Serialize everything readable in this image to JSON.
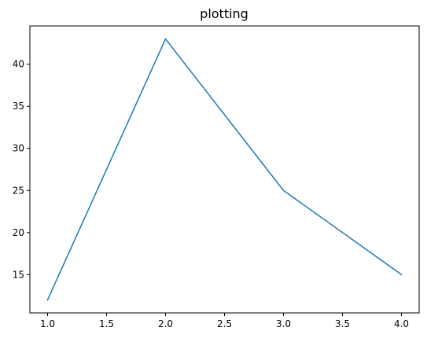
{
  "chart_data": {
    "type": "line",
    "title": "plotting",
    "xlabel": "",
    "ylabel": "",
    "x": [
      1.0,
      2.0,
      3.0,
      4.0
    ],
    "series": [
      {
        "values": [
          12,
          43,
          25,
          15
        ],
        "color": "#1f77b4"
      }
    ],
    "xlim": [
      0.85,
      4.15
    ],
    "ylim": [
      10.45,
      44.55
    ],
    "xticks": [
      1.0,
      1.5,
      2.0,
      2.5,
      3.0,
      3.5,
      4.0
    ],
    "xtick_labels": [
      "1.0",
      "1.5",
      "2.0",
      "2.5",
      "3.0",
      "3.5",
      "4.0"
    ],
    "yticks": [
      15,
      20,
      25,
      30,
      35,
      40
    ],
    "ytick_labels": [
      "15",
      "20",
      "25",
      "30",
      "35",
      "40"
    ],
    "grid": false,
    "legend": "none"
  }
}
